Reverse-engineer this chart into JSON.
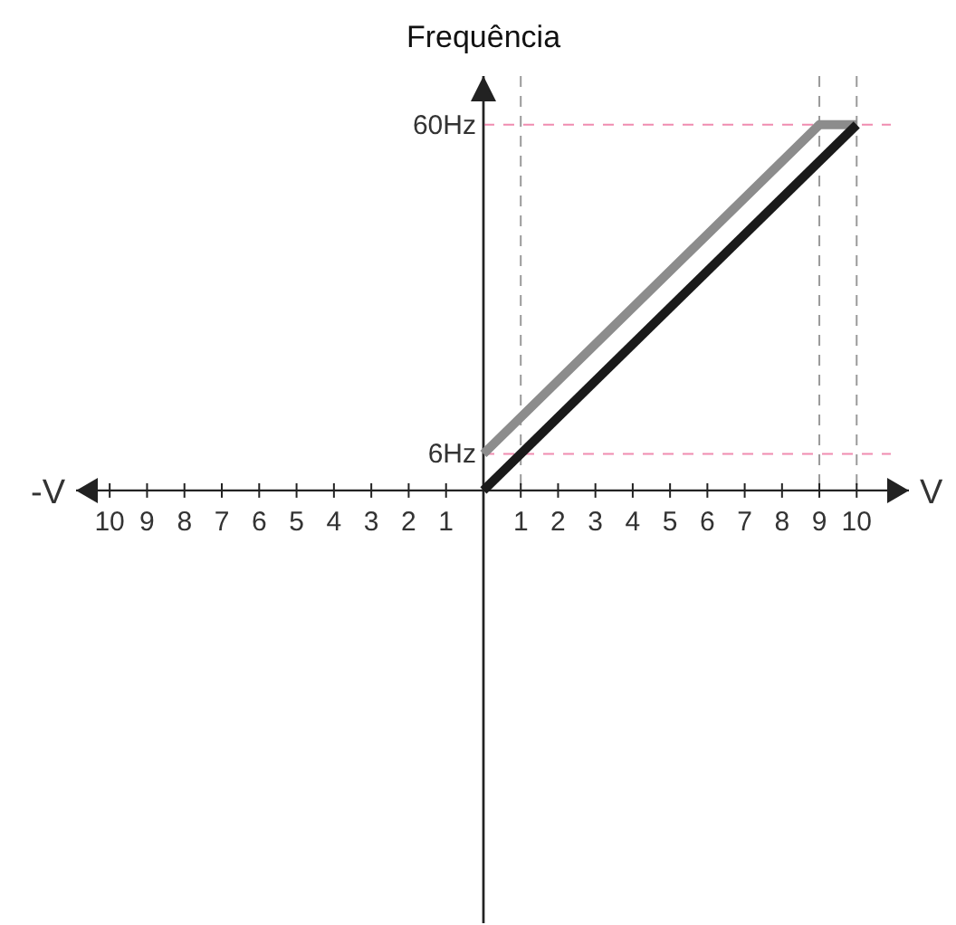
{
  "chart_data": [
    {
      "type": "line",
      "xlabel": "-V",
      "xlim": [
        10.9,
        0
      ],
      "ylim": [
        -71,
        68
      ],
      "xticks": [
        10,
        9,
        8,
        7,
        6,
        5,
        4,
        3,
        2,
        1
      ],
      "tick_labels": "x"
    },
    {
      "type": "line",
      "ylabel": "Frequência",
      "xlabel": "V",
      "xlim": [
        0,
        11.4
      ],
      "ylim": [
        -71,
        68
      ],
      "xticks": [
        1,
        2,
        3,
        4,
        5,
        6,
        7,
        8,
        9,
        10
      ],
      "yticks": [
        {
          "value": 6,
          "label": "6Hz"
        },
        {
          "value": 60,
          "label": "60Hz"
        }
      ],
      "ref_lines": [
        {
          "axis": "x",
          "value": 1,
          "color": "#999999",
          "line_style": "dashed"
        },
        {
          "axis": "x",
          "value": 9,
          "color": "#999999",
          "line_style": "dashed"
        },
        {
          "axis": "x",
          "value": 10,
          "color": "#999999",
          "line_style": "dashed"
        },
        {
          "axis": "y",
          "value": 6,
          "color": "#f08cb0",
          "line_style": "dashed"
        },
        {
          "axis": "y",
          "value": 60,
          "color": "#f08cb0",
          "line_style": "dashed"
        }
      ],
      "series": [
        {
          "color": "#8c8c8c",
          "x": [
            0,
            9,
            10
          ],
          "values": [
            6,
            60,
            60
          ]
        },
        {
          "color": "#1a1a1a",
          "x": [
            0,
            10
          ],
          "values": [
            0,
            60
          ]
        }
      ],
      "line_style": "solid"
    }
  ]
}
